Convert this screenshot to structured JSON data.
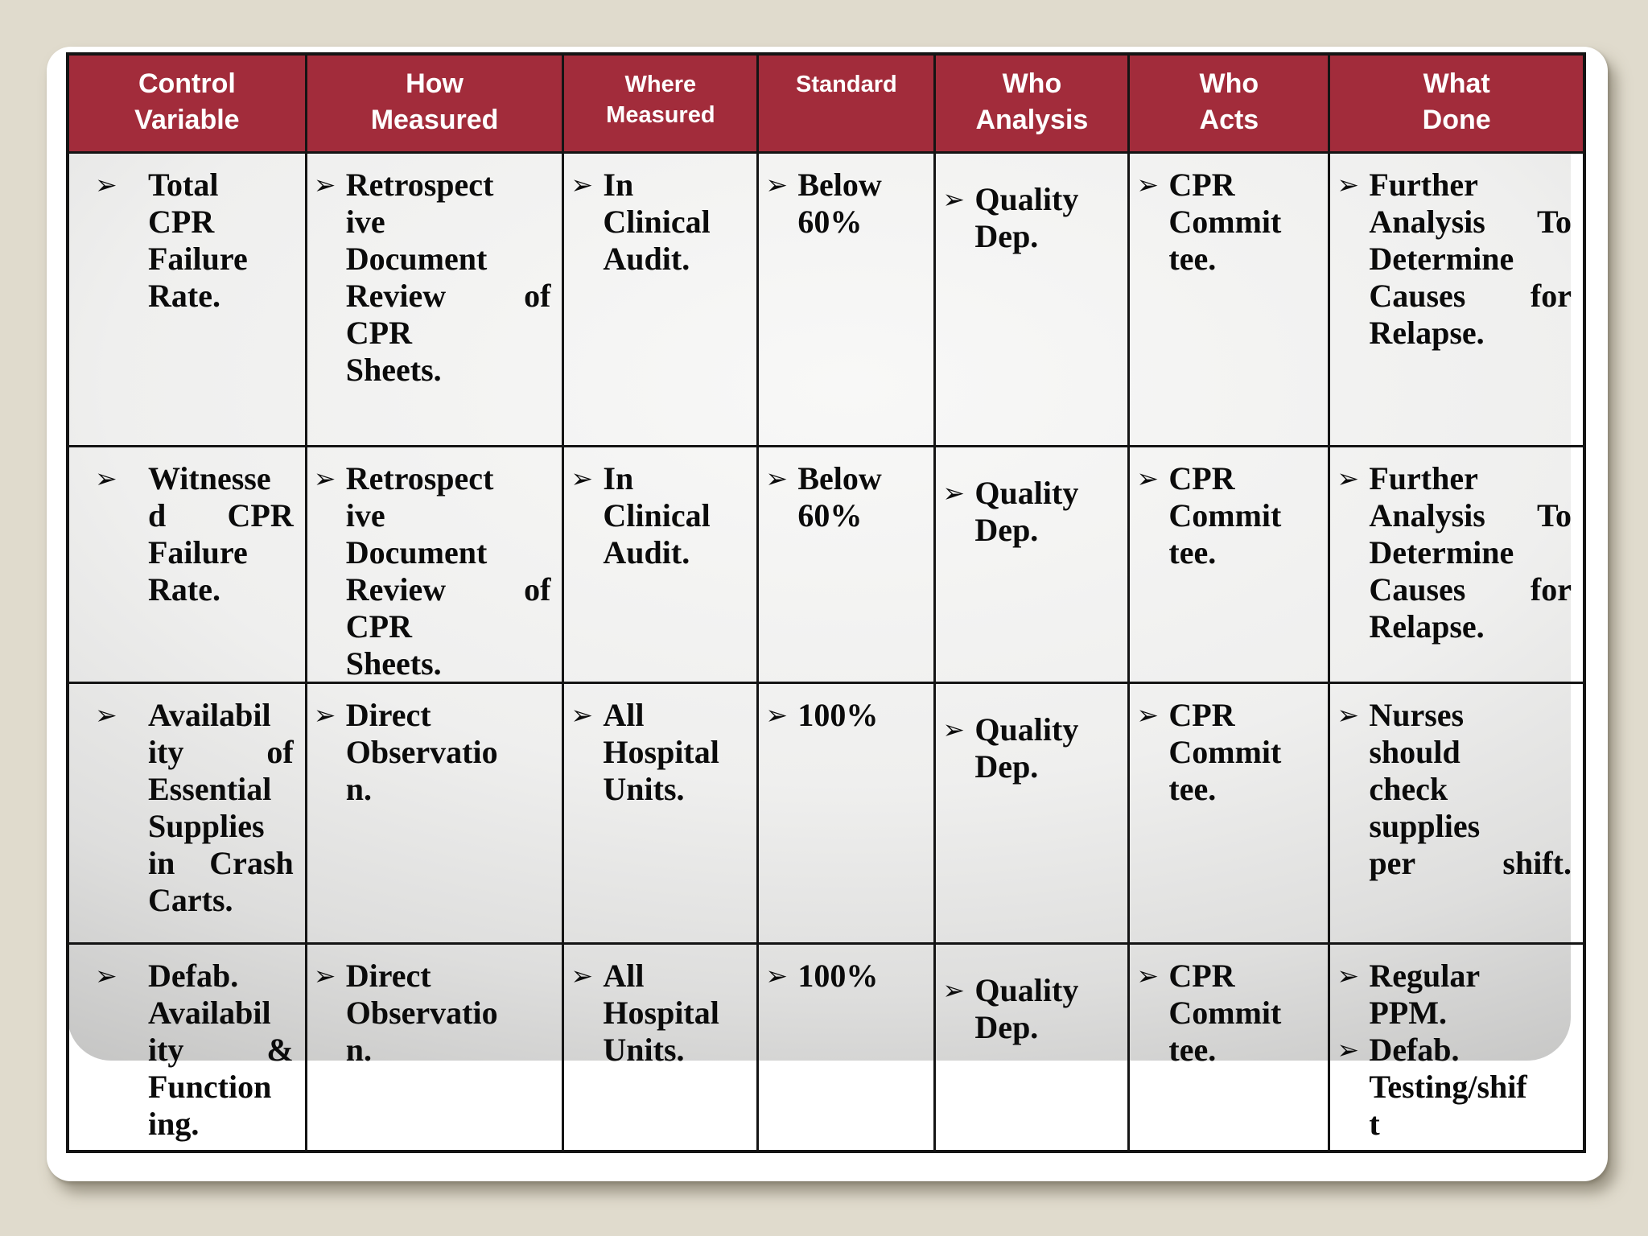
{
  "slide": {
    "background_color": "#e0dbcd",
    "card_color": "#ffffff"
  },
  "table": {
    "bullet": "➢",
    "header_bg": "#a22c3b",
    "header_text_color": "#ffffff",
    "body_text_color": "#0b0b0b",
    "border_color": "#141414",
    "columns": [
      {
        "id": "control-variable",
        "label": "Control\nVariable",
        "small": false
      },
      {
        "id": "how-measured",
        "label": "How\nMeasured",
        "small": false
      },
      {
        "id": "where-measured",
        "label": "Where\nMeasured",
        "small": true
      },
      {
        "id": "standard",
        "label": "Standard",
        "small": true
      },
      {
        "id": "who-analysis",
        "label": "Who\nAnalysis",
        "small": false
      },
      {
        "id": "who-acts",
        "label": "Who\nActs",
        "small": false
      },
      {
        "id": "what-done",
        "label": "What\nDone",
        "small": false
      }
    ],
    "rows": [
      [
        [
          "Total\nCPR\nFailure\nRate."
        ],
        [
          "Retrospect\nive\nDocument\nReview of\nCPR\nSheets."
        ],
        [
          "In\nClinical\nAudit."
        ],
        [
          "Below\n60%"
        ],
        [
          "Quality\nDep."
        ],
        [
          "CPR\nCommit\ntee."
        ],
        [
          "Further\nAnalysis To\nDetermine\nCauses for\nRelapse."
        ]
      ],
      [
        [
          "Witnesse\nd CPR\nFailure\nRate."
        ],
        [
          "Retrospect\nive\nDocument\nReview of\nCPR\nSheets."
        ],
        [
          "In\nClinical\nAudit."
        ],
        [
          "Below\n60%"
        ],
        [
          "Quality\nDep."
        ],
        [
          "CPR\nCommit\ntee."
        ],
        [
          "Further\nAnalysis To\nDetermine\nCauses for\nRelapse."
        ]
      ],
      [
        [
          "Availabil\nity of\nEssential\nSupplies\nin Crash\nCarts."
        ],
        [
          "Direct\nObservatio\nn."
        ],
        [
          "All\nHospital\nUnits."
        ],
        [
          "100%"
        ],
        [
          "Quality\nDep."
        ],
        [
          "CPR\nCommit\ntee."
        ],
        [
          "Nurses\nshould\ncheck\nsupplies\nper shift."
        ]
      ],
      [
        [
          "Defab.\nAvailabil\nity &\nFunction\ning."
        ],
        [
          "Direct\nObservatio\nn."
        ],
        [
          "All\nHospital\nUnits."
        ],
        [
          "100%"
        ],
        [
          "Quality\nDep."
        ],
        [
          "CPR\nCommit\ntee."
        ],
        [
          "Regular\nPPM.",
          "Defab.\nTesting/shif\nt"
        ]
      ]
    ]
  }
}
